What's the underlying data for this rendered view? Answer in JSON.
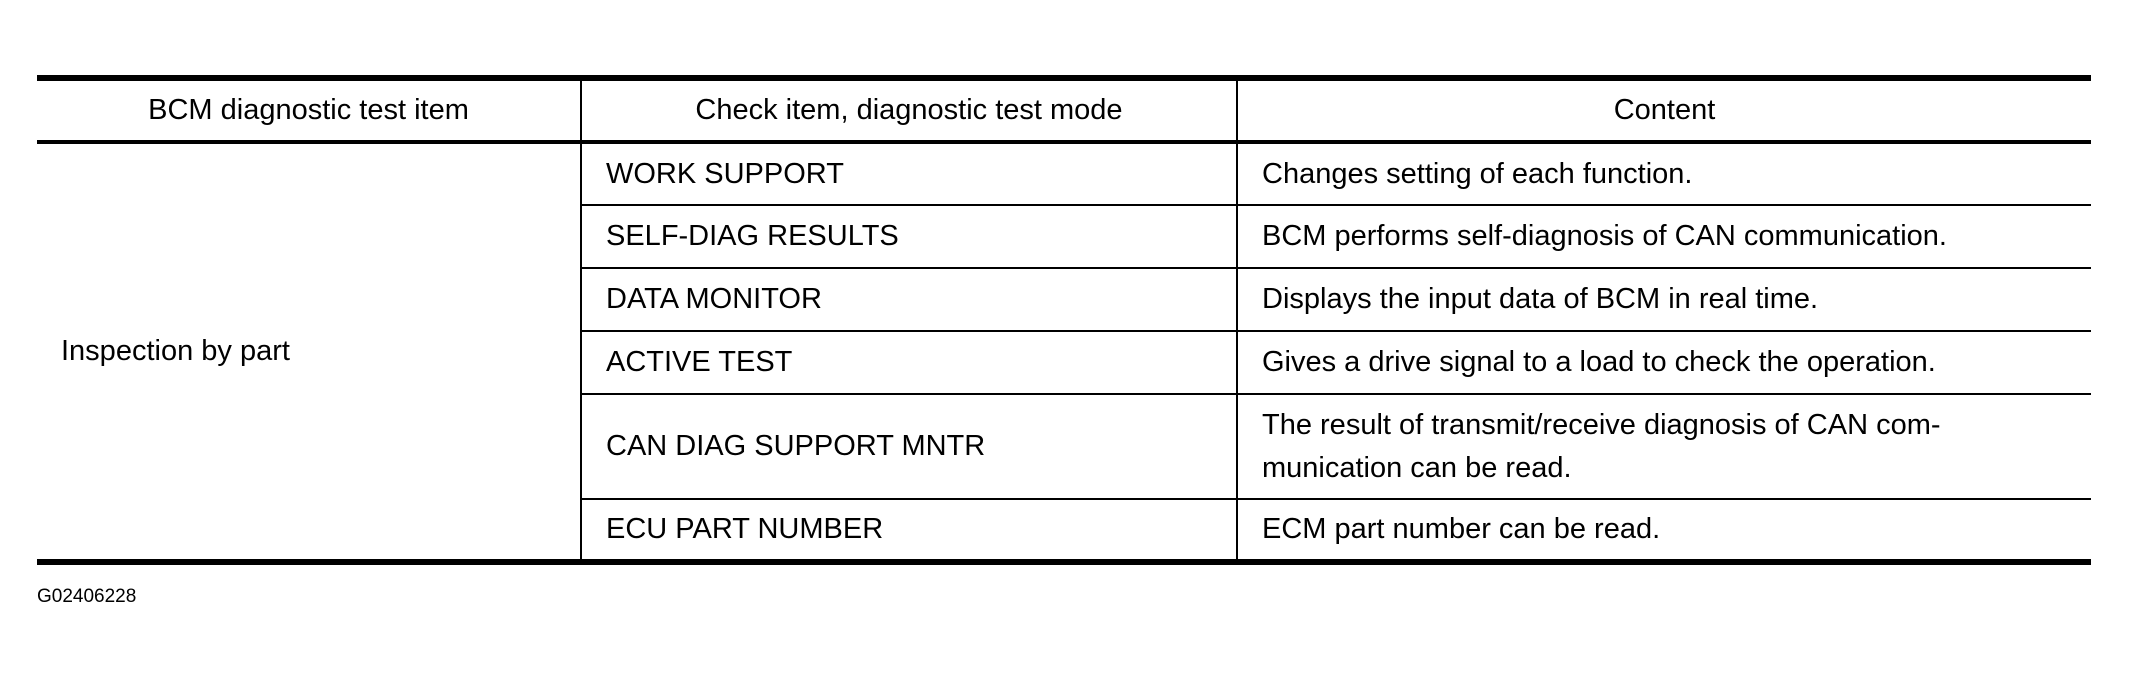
{
  "table": {
    "headers": [
      "BCM diagnostic test item",
      "Check item, diagnostic test mode",
      "Content"
    ],
    "group_label": "Inspection by part",
    "rows": [
      {
        "mode": "WORK SUPPORT",
        "content": "Changes setting of each function."
      },
      {
        "mode": "SELF-DIAG RESULTS",
        "content": "BCM performs self-diagnosis of CAN communication."
      },
      {
        "mode": "DATA MONITOR",
        "content": "Displays the input data of BCM in real time."
      },
      {
        "mode": "ACTIVE TEST",
        "content": "Gives a drive signal to a load to check the operation."
      },
      {
        "mode": "CAN DIAG SUPPORT MNTR",
        "content": "The result of transmit/receive diagnosis of CAN com-munication can be read.",
        "content_lines": [
          "The result of transmit/receive diagnosis of CAN com-",
          "munication can be read."
        ]
      },
      {
        "mode": "ECU PART NUMBER",
        "content": "ECM part number can be read."
      }
    ]
  },
  "figure_id": "G02406228"
}
